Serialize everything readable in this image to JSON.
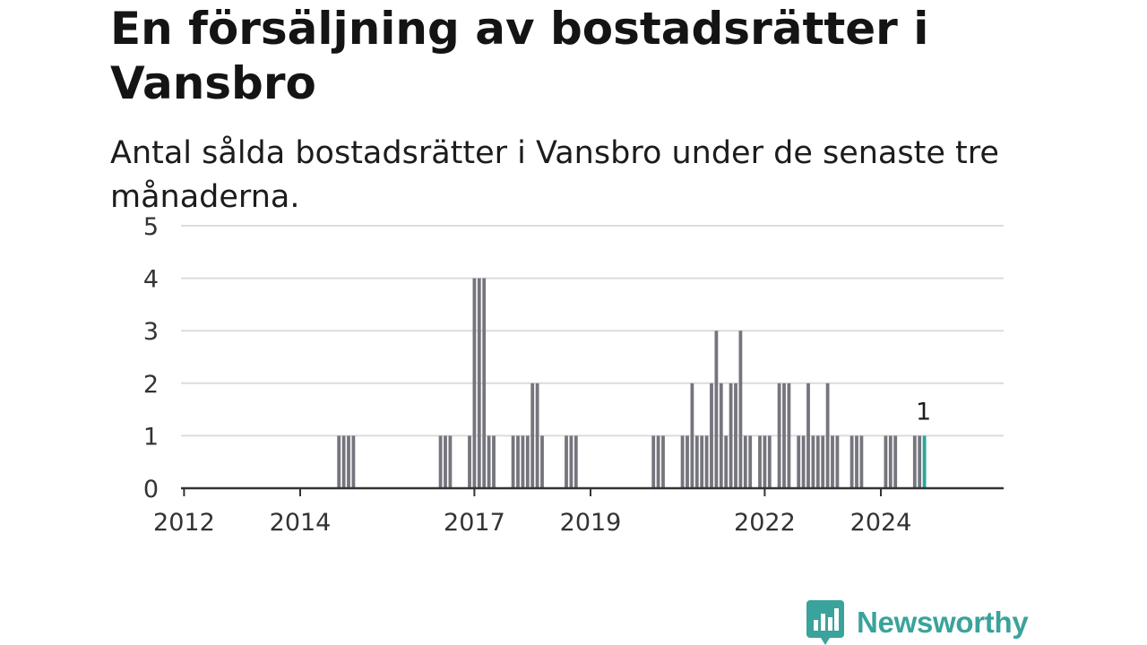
{
  "title": "En försäljning av bostadsrätter i Vansbro",
  "subtitle": "Antal sålda bostadsrätter i Vansbro under de senaste tre månaderna.",
  "brand": {
    "name": "Newsworthy",
    "color": "#3aa39b"
  },
  "colors": {
    "bar": "#75757d",
    "highlight": "#2ba69a",
    "grid": "#dcdcdc",
    "axis": "#333333"
  },
  "chart_data": {
    "type": "bar",
    "x_unit": "month",
    "ylim": [
      0,
      5
    ],
    "yticks": [
      0,
      1,
      2,
      3,
      4,
      5
    ],
    "xticks": [
      "2012",
      "2014",
      "2017",
      "2019",
      "2022",
      "2024"
    ],
    "grid": true,
    "annotation": {
      "x": "2024-10",
      "text": "1"
    },
    "series": [
      {
        "values": [
          {
            "x": "2014-09",
            "y": 1
          },
          {
            "x": "2014-10",
            "y": 1
          },
          {
            "x": "2014-11",
            "y": 1
          },
          {
            "x": "2014-12",
            "y": 1
          },
          {
            "x": "2016-06",
            "y": 1
          },
          {
            "x": "2016-07",
            "y": 1
          },
          {
            "x": "2016-08",
            "y": 1
          },
          {
            "x": "2016-12",
            "y": 1
          },
          {
            "x": "2017-01",
            "y": 4
          },
          {
            "x": "2017-02",
            "y": 4
          },
          {
            "x": "2017-03",
            "y": 4
          },
          {
            "x": "2017-04",
            "y": 1
          },
          {
            "x": "2017-05",
            "y": 1
          },
          {
            "x": "2017-09",
            "y": 1
          },
          {
            "x": "2017-10",
            "y": 1
          },
          {
            "x": "2017-11",
            "y": 1
          },
          {
            "x": "2017-12",
            "y": 1
          },
          {
            "x": "2018-01",
            "y": 2
          },
          {
            "x": "2018-02",
            "y": 2
          },
          {
            "x": "2018-03",
            "y": 1
          },
          {
            "x": "2018-08",
            "y": 1
          },
          {
            "x": "2018-09",
            "y": 1
          },
          {
            "x": "2018-10",
            "y": 1
          },
          {
            "x": "2020-02",
            "y": 1
          },
          {
            "x": "2020-03",
            "y": 1
          },
          {
            "x": "2020-04",
            "y": 1
          },
          {
            "x": "2020-08",
            "y": 1
          },
          {
            "x": "2020-09",
            "y": 1
          },
          {
            "x": "2020-10",
            "y": 2
          },
          {
            "x": "2020-11",
            "y": 1
          },
          {
            "x": "2020-12",
            "y": 1
          },
          {
            "x": "2021-01",
            "y": 1
          },
          {
            "x": "2021-02",
            "y": 2
          },
          {
            "x": "2021-03",
            "y": 3
          },
          {
            "x": "2021-04",
            "y": 2
          },
          {
            "x": "2021-05",
            "y": 1
          },
          {
            "x": "2021-06",
            "y": 2
          },
          {
            "x": "2021-07",
            "y": 2
          },
          {
            "x": "2021-08",
            "y": 3
          },
          {
            "x": "2021-09",
            "y": 1
          },
          {
            "x": "2021-10",
            "y": 1
          },
          {
            "x": "2021-12",
            "y": 1
          },
          {
            "x": "2022-01",
            "y": 1
          },
          {
            "x": "2022-02",
            "y": 1
          },
          {
            "x": "2022-04",
            "y": 2
          },
          {
            "x": "2022-05",
            "y": 2
          },
          {
            "x": "2022-06",
            "y": 2
          },
          {
            "x": "2022-08",
            "y": 1
          },
          {
            "x": "2022-09",
            "y": 1
          },
          {
            "x": "2022-10",
            "y": 2
          },
          {
            "x": "2022-11",
            "y": 1
          },
          {
            "x": "2022-12",
            "y": 1
          },
          {
            "x": "2023-01",
            "y": 1
          },
          {
            "x": "2023-02",
            "y": 2
          },
          {
            "x": "2023-03",
            "y": 1
          },
          {
            "x": "2023-04",
            "y": 1
          },
          {
            "x": "2023-07",
            "y": 1
          },
          {
            "x": "2023-08",
            "y": 1
          },
          {
            "x": "2023-09",
            "y": 1
          },
          {
            "x": "2024-02",
            "y": 1
          },
          {
            "x": "2024-03",
            "y": 1
          },
          {
            "x": "2024-04",
            "y": 1
          },
          {
            "x": "2024-08",
            "y": 1
          },
          {
            "x": "2024-09",
            "y": 1
          },
          {
            "x": "2024-10",
            "y": 1,
            "highlight": true
          }
        ]
      }
    ]
  }
}
